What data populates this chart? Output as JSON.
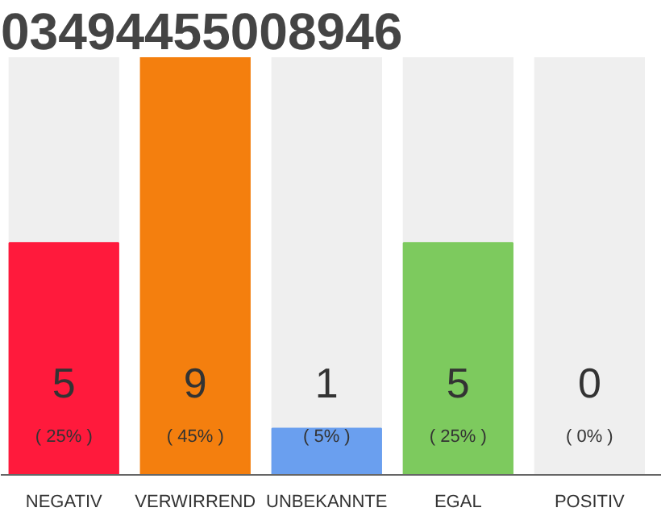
{
  "chart_data": {
    "type": "bar",
    "title": "03494455008946",
    "categories": [
      "NEGATIV",
      "VERWIRREND",
      "UNBEKANNTE",
      "EGAL",
      "POSITIV"
    ],
    "values": [
      5,
      9,
      1,
      5,
      0
    ],
    "colors": [
      "#ff1a3c",
      "#f47f0e",
      "#6a9fef",
      "#7dca5e",
      "#d9d9d9"
    ],
    "data_labels": true,
    "annotations": [
      "( 25% )",
      "( 45% )",
      "( 5% )",
      "( 25% )",
      "( 0% )"
    ],
    "grid": false
  }
}
